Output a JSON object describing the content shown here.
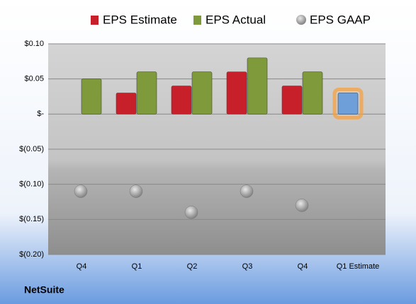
{
  "chart_data": {
    "type": "bar",
    "categories": [
      "Q4",
      "Q1",
      "Q2",
      "Q3",
      "Q4",
      "Q1 Estimate"
    ],
    "series": [
      {
        "name": "EPS Estimate",
        "color": "#c8202a",
        "values": [
          null,
          0.03,
          0.04,
          0.06,
          0.04,
          0.03
        ]
      },
      {
        "name": "EPS Actual",
        "color": "#7f9a3a",
        "values": [
          0.05,
          0.06,
          0.06,
          0.08,
          0.06,
          null
        ]
      },
      {
        "name": "EPS GAAP",
        "color": "#a8a8a8",
        "values": [
          -0.11,
          -0.11,
          -0.14,
          -0.11,
          -0.13,
          null
        ]
      }
    ],
    "highlight": {
      "index": 5,
      "color": "#6f9fd8",
      "glow": "#f5a040"
    },
    "ylim": [
      -0.2,
      0.1
    ],
    "yticks": [
      {
        "value": -0.2,
        "label": "$(0.20)"
      },
      {
        "value": -0.15,
        "label": "$(0.15)"
      },
      {
        "value": -0.1,
        "label": "$(0.10)"
      },
      {
        "value": -0.05,
        "label": "$(0.05)"
      },
      {
        "value": 0,
        "label": "$-"
      },
      {
        "value": 0.05,
        "label": "$0.05"
      },
      {
        "value": 0.1,
        "label": "$0.10"
      }
    ],
    "grid": true,
    "footer": "NetSuite"
  }
}
